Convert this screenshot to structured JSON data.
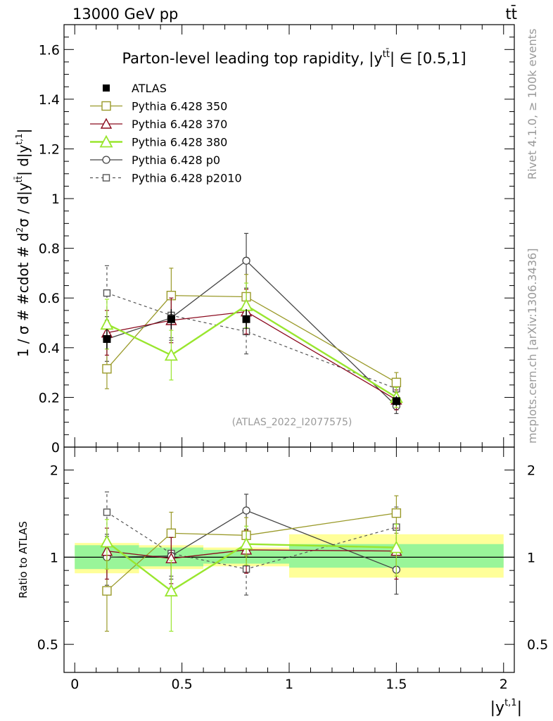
{
  "header": {
    "energy_label": "13000 GeV pp",
    "process_label": "tt̄"
  },
  "side_labels": {
    "rivet": "Rivet 4.1.0, ≥ 100k events",
    "mcplots": "mcplots.cern.ch [arXiv:1306.3436]"
  },
  "colors": {
    "atlas": "#000000",
    "p350": "#9a9a2a",
    "p370": "#8b0a1e",
    "p380": "#99e62e",
    "p0": "#444444",
    "p2010": "#555555",
    "band_inner": "#99f599",
    "band_outer": "#ffff99"
  },
  "chart_data": [
    {
      "type": "line",
      "panel": "main",
      "title": "Parton-level leading top rapidity, |y̅tt̄| ∈ [0.5,1]",
      "title_pre": "Parton-level leading top rapidity, |",
      "title_y": "y",
      "title_sup": "tt̄",
      "title_post": "| ∈ [0.5,1]",
      "ylabel": "1 / σ # #cdot # d²σ / d|y̅tt̄| d|yᵗ·¹|",
      "ylabel_pre": "1 / σ # #cdot # d",
      "ylabel_sup2": "2",
      "ylabel_mid": "σ / d|y",
      "ylabel_sup_tt": "tt̄",
      "ylabel_mid2": "| d|y",
      "ylabel_sup_t1": "t,1",
      "ylabel_end": "|",
      "xlim": [
        -0.05,
        2.05
      ],
      "ylim": [
        0,
        1.7
      ],
      "yticks": [
        0,
        0.2,
        0.4,
        0.6,
        0.8,
        1,
        1.2,
        1.4,
        1.6
      ],
      "ytick_labels": [
        "0",
        "0.2",
        "0.4",
        "0.6",
        "0.8",
        "1",
        "1.2",
        "1.4",
        "1.6"
      ],
      "watermark": "(ATLAS_2022_I2077575)",
      "legend_position": "top-left",
      "series": [
        {
          "name": "ATLAS",
          "key": "atlas",
          "style": "data",
          "x": [
            0.15,
            0.45,
            0.8,
            1.5
          ],
          "y": [
            0.435,
            0.515,
            0.515,
            0.185
          ],
          "err": [
            0.04,
            0.04,
            0.04,
            0.02
          ]
        },
        {
          "name": "Pythia 6.428 350",
          "key": "p350",
          "style": "open-square",
          "x": [
            0.15,
            0.45,
            0.8,
            1.5
          ],
          "y": [
            0.315,
            0.61,
            0.605,
            0.26
          ],
          "err": [
            0.08,
            0.11,
            0.09,
            0.04
          ]
        },
        {
          "name": "Pythia 6.428 370",
          "key": "p370",
          "style": "open-triangle",
          "x": [
            0.15,
            0.45,
            0.8,
            1.5
          ],
          "y": [
            0.46,
            0.51,
            0.545,
            0.19
          ],
          "err": [
            0.09,
            0.09,
            0.09,
            0.04
          ]
        },
        {
          "name": "Pythia 6.428 380",
          "key": "p380",
          "style": "open-triangle-thick",
          "x": [
            0.15,
            0.45,
            0.8,
            1.5
          ],
          "y": [
            0.495,
            0.37,
            0.57,
            0.2
          ],
          "err": [
            0.1,
            0.1,
            0.09,
            0.04
          ]
        },
        {
          "name": "Pythia 6.428 p0",
          "key": "p0",
          "style": "open-circle",
          "x": [
            0.15,
            0.45,
            0.8,
            1.5
          ],
          "y": [
            0.435,
            0.52,
            0.75,
            0.165
          ],
          "err": [
            0.09,
            0.09,
            0.11,
            0.03
          ]
        },
        {
          "name": "Pythia 6.428 p2010",
          "key": "p2010",
          "style": "open-square-dashed",
          "x": [
            0.15,
            0.45,
            0.8,
            1.5
          ],
          "y": [
            0.62,
            0.53,
            0.465,
            0.235
          ],
          "err": [
            0.11,
            0.09,
            0.09,
            0.04
          ]
        }
      ]
    },
    {
      "type": "line",
      "panel": "ratio",
      "ylabel": "Ratio to ATLAS",
      "xlabel": "|yᵗ·¹|",
      "xlabel_pre": "|y",
      "xlabel_sup": "t,1",
      "xlabel_end": "|",
      "xlim": [
        -0.05,
        2.05
      ],
      "ylim": [
        0.4,
        2.4
      ],
      "ylog": true,
      "xticks": [
        0,
        0.5,
        1,
        1.5,
        2
      ],
      "xtick_labels": [
        "0",
        "0.5",
        "1",
        "1.5",
        "2"
      ],
      "yticks": [
        0.5,
        1,
        2
      ],
      "ytick_labels": [
        "0.5",
        "1",
        "2"
      ],
      "bins": [
        {
          "lo": 0.0,
          "hi": 0.3,
          "inner": [
            0.91,
            1.1
          ],
          "outer": [
            0.88,
            1.12
          ]
        },
        {
          "lo": 0.3,
          "hi": 0.6,
          "inner": [
            0.93,
            1.08
          ],
          "outer": [
            0.91,
            1.1
          ]
        },
        {
          "lo": 0.6,
          "hi": 1.0,
          "inner": [
            0.95,
            1.06
          ],
          "outer": [
            0.93,
            1.08
          ]
        },
        {
          "lo": 1.0,
          "hi": 2.0,
          "inner": [
            0.92,
            1.11
          ],
          "outer": [
            0.85,
            1.2
          ]
        }
      ],
      "series": [
        {
          "name": "Pythia 6.428 350",
          "key": "p350",
          "style": "open-square",
          "x": [
            0.15,
            0.45,
            0.8,
            1.5
          ],
          "y": [
            0.765,
            1.21,
            1.19,
            1.42
          ],
          "err": [
            0.21,
            0.22,
            0.18,
            0.21
          ]
        },
        {
          "name": "Pythia 6.428 370",
          "key": "p370",
          "style": "open-triangle",
          "x": [
            0.15,
            0.45,
            0.8,
            1.5
          ],
          "y": [
            1.05,
            0.99,
            1.06,
            1.05
          ],
          "err": [
            0.21,
            0.18,
            0.18,
            0.21
          ]
        },
        {
          "name": "Pythia 6.428 380",
          "key": "p380",
          "style": "open-triangle-thick",
          "x": [
            0.15,
            0.45,
            0.8,
            1.5
          ],
          "y": [
            1.13,
            0.765,
            1.11,
            1.08
          ],
          "err": [
            0.22,
            0.21,
            0.17,
            0.22
          ]
        },
        {
          "name": "Pythia 6.428 p0",
          "key": "p0",
          "style": "open-circle",
          "x": [
            0.15,
            0.45,
            0.8,
            1.5
          ],
          "y": [
            1.0,
            1.01,
            1.45,
            0.905
          ],
          "err": [
            0.2,
            0.17,
            0.2,
            0.16
          ]
        },
        {
          "name": "Pythia 6.428 p2010",
          "key": "p2010",
          "style": "open-square-dashed",
          "x": [
            0.15,
            0.45,
            0.8,
            1.5
          ],
          "y": [
            1.43,
            1.03,
            0.91,
            1.27
          ],
          "err": [
            0.25,
            0.17,
            0.17,
            0.22
          ]
        }
      ]
    }
  ]
}
